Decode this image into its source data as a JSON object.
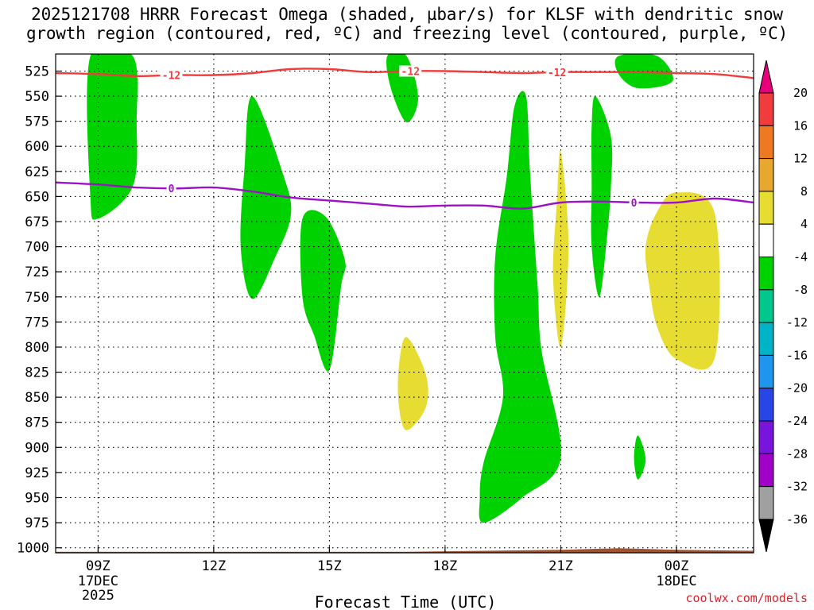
{
  "title_line1": "2025121708 HRRR Forecast Omega (shaded, µbar/s) for KLSF with dendritic snow",
  "title_line2": "growth region (contoured, red, ºC) and freezing level (contoured, purple, ºC)",
  "credit": "coolwx.com/models",
  "chart_data": {
    "type": "heatmap",
    "title": "2025121708 HRRR Forecast Omega (shaded, µbar/s) for KLSF with dendritic snow growth region (contoured, red, ºC) and freezing level (contoured, purple, ºC)",
    "xlabel": "Forecast Time (UTC)",
    "ylabel": "",
    "xlim_hours": [
      7.9,
      26.0
    ],
    "ylim_hPa": [
      1005,
      508
    ],
    "x_ticks": [
      {
        "hour": 9,
        "label": "09Z",
        "sub1": "17DEC",
        "sub2": "2025"
      },
      {
        "hour": 12,
        "label": "12Z",
        "sub1": "",
        "sub2": ""
      },
      {
        "hour": 15,
        "label": "15Z",
        "sub1": "",
        "sub2": ""
      },
      {
        "hour": 18,
        "label": "18Z",
        "sub1": "",
        "sub2": ""
      },
      {
        "hour": 21,
        "label": "21Z",
        "sub1": "",
        "sub2": ""
      },
      {
        "hour": 24,
        "label": "00Z",
        "sub1": "18DEC",
        "sub2": ""
      }
    ],
    "y_ticks": [
      525,
      550,
      575,
      600,
      625,
      650,
      675,
      700,
      725,
      750,
      775,
      800,
      825,
      850,
      875,
      900,
      925,
      950,
      975,
      1000
    ],
    "colorbar": {
      "labels": [
        "20",
        "16",
        "12",
        "8",
        "4",
        "-4",
        "-8",
        "-12",
        "-16",
        "-20",
        "-24",
        "-28",
        "-32",
        "-36"
      ],
      "bins": [
        {
          "lo": 20,
          "hi": 99,
          "color": "#e8007a"
        },
        {
          "lo": 16,
          "hi": 20,
          "color": "#f03c3c"
        },
        {
          "lo": 12,
          "hi": 16,
          "color": "#f07820"
        },
        {
          "lo": 8,
          "hi": 12,
          "color": "#e8a830"
        },
        {
          "lo": 4,
          "hi": 8,
          "color": "#e6dc32"
        },
        {
          "lo": -4,
          "hi": 4,
          "color": "#ffffff"
        },
        {
          "lo": -8,
          "hi": -4,
          "color": "#00d200"
        },
        {
          "lo": -12,
          "hi": -8,
          "color": "#00c88c"
        },
        {
          "lo": -16,
          "hi": -12,
          "color": "#00b4c8"
        },
        {
          "lo": -20,
          "hi": -16,
          "color": "#1e96f0"
        },
        {
          "lo": -24,
          "hi": -20,
          "color": "#2846e6"
        },
        {
          "lo": -28,
          "hi": -24,
          "color": "#7814dc"
        },
        {
          "lo": -32,
          "hi": -28,
          "color": "#a000c8"
        },
        {
          "lo": -36,
          "hi": -32,
          "color": "#a0a0a0"
        },
        {
          "lo": -99,
          "hi": -36,
          "color": "#000000"
        }
      ]
    },
    "omega_regions": [
      {
        "color": "#00d200",
        "points": [
          [
            8.8,
            510
          ],
          [
            9.9,
            510
          ],
          [
            10.0,
            575
          ],
          [
            9.9,
            640
          ],
          [
            9.0,
            672
          ],
          [
            8.8,
            650
          ]
        ]
      },
      {
        "color": "#00d200",
        "points": [
          [
            12.8,
            620
          ],
          [
            13.0,
            550
          ],
          [
            13.8,
            628
          ],
          [
            14.0,
            668
          ],
          [
            13.6,
            710
          ],
          [
            13.0,
            752
          ],
          [
            12.7,
            700
          ]
        ]
      },
      {
        "color": "#00d200",
        "points": [
          [
            14.3,
            672
          ],
          [
            14.9,
            670
          ],
          [
            15.4,
            713
          ],
          [
            15.3,
            740
          ],
          [
            15.0,
            823
          ],
          [
            14.6,
            788
          ],
          [
            14.3,
            750
          ]
        ]
      },
      {
        "color": "#00d200",
        "points": [
          [
            16.5,
            510
          ],
          [
            17.0,
            510
          ],
          [
            17.3,
            552
          ],
          [
            17.0,
            576
          ],
          [
            16.6,
            543
          ]
        ]
      },
      {
        "color": "#00d200",
        "points": [
          [
            19.8,
            560
          ],
          [
            20.1,
            550
          ],
          [
            20.2,
            625
          ],
          [
            20.4,
            740
          ],
          [
            20.5,
            803
          ],
          [
            21.0,
            910
          ],
          [
            20.0,
            950
          ],
          [
            19.0,
            975
          ],
          [
            18.9,
            950
          ],
          [
            19.0,
            915
          ],
          [
            19.5,
            850
          ],
          [
            19.3,
            790
          ],
          [
            19.3,
            710
          ],
          [
            19.6,
            630
          ]
        ]
      },
      {
        "color": "#00d200",
        "points": [
          [
            21.8,
            580
          ],
          [
            21.9,
            550
          ],
          [
            22.3,
            590
          ],
          [
            22.3,
            640
          ],
          [
            22.2,
            690
          ],
          [
            22.0,
            750
          ],
          [
            21.8,
            700
          ],
          [
            21.8,
            640
          ]
        ]
      },
      {
        "color": "#00d200",
        "points": [
          [
            22.5,
            510
          ],
          [
            23.5,
            510
          ],
          [
            23.9,
            535
          ],
          [
            23.0,
            542
          ],
          [
            22.5,
            528
          ]
        ]
      },
      {
        "color": "#00d200",
        "points": [
          [
            23.0,
            888
          ],
          [
            23.2,
            912
          ],
          [
            23.0,
            932
          ],
          [
            22.9,
            910
          ]
        ]
      },
      {
        "color": "#e6dc32",
        "points": [
          [
            20.9,
            655
          ],
          [
            21.0,
            605
          ],
          [
            21.2,
            700
          ],
          [
            21.0,
            800
          ],
          [
            20.8,
            730
          ]
        ]
      },
      {
        "color": "#e6dc32",
        "points": [
          [
            23.2,
            700
          ],
          [
            23.5,
            665
          ],
          [
            24.0,
            646
          ],
          [
            25.0,
            668
          ],
          [
            25.0,
            810
          ],
          [
            24.0,
            812
          ],
          [
            23.5,
            780
          ],
          [
            23.3,
            740
          ]
        ]
      },
      {
        "color": "#e6dc32",
        "points": [
          [
            16.8,
            820
          ],
          [
            17.0,
            790
          ],
          [
            17.5,
            827
          ],
          [
            17.5,
            860
          ],
          [
            17.0,
            883
          ],
          [
            16.8,
            858
          ]
        ]
      }
    ],
    "snow_growth_contour": {
      "label": "-12",
      "color": "#f03c3c",
      "points": [
        [
          7.9,
          527
        ],
        [
          9.0,
          528
        ],
        [
          10.0,
          530
        ],
        [
          11.0,
          529
        ],
        [
          12.0,
          529
        ],
        [
          13.0,
          527
        ],
        [
          14.0,
          523
        ],
        [
          15.0,
          523
        ],
        [
          16.0,
          526
        ],
        [
          17.0,
          525
        ],
        [
          18.0,
          525
        ],
        [
          19.0,
          526
        ],
        [
          20.0,
          527
        ],
        [
          21.0,
          526
        ],
        [
          22.0,
          526
        ],
        [
          23.0,
          526
        ],
        [
          24.0,
          527
        ],
        [
          25.0,
          528
        ],
        [
          26.0,
          532
        ]
      ],
      "label_hours": [
        10.9,
        17.1,
        20.9
      ]
    },
    "freezing_level_contour": {
      "label": "0",
      "color": "#9c12c6",
      "points": [
        [
          7.9,
          636
        ],
        [
          9.0,
          638
        ],
        [
          10.0,
          641
        ],
        [
          11.0,
          642
        ],
        [
          12.0,
          641
        ],
        [
          13.0,
          645
        ],
        [
          14.0,
          651
        ],
        [
          15.0,
          654
        ],
        [
          16.0,
          657
        ],
        [
          17.0,
          660
        ],
        [
          18.0,
          659
        ],
        [
          19.0,
          659
        ],
        [
          20.0,
          662
        ],
        [
          21.0,
          656
        ],
        [
          22.0,
          655
        ],
        [
          23.0,
          656
        ],
        [
          24.0,
          656
        ],
        [
          25.0,
          652
        ],
        [
          26.0,
          656
        ]
      ],
      "label_hours": [
        10.9,
        22.9
      ]
    },
    "terrain": {
      "color": "#a0522d",
      "points": [
        [
          7.9,
          1004
        ],
        [
          17.0,
          1004
        ],
        [
          19.0,
          1003
        ],
        [
          21.0,
          1002
        ],
        [
          22.0,
          1001
        ],
        [
          22.5,
          1000.5
        ],
        [
          23.0,
          1001
        ],
        [
          24.0,
          1002
        ],
        [
          26.0,
          1003
        ]
      ]
    }
  }
}
